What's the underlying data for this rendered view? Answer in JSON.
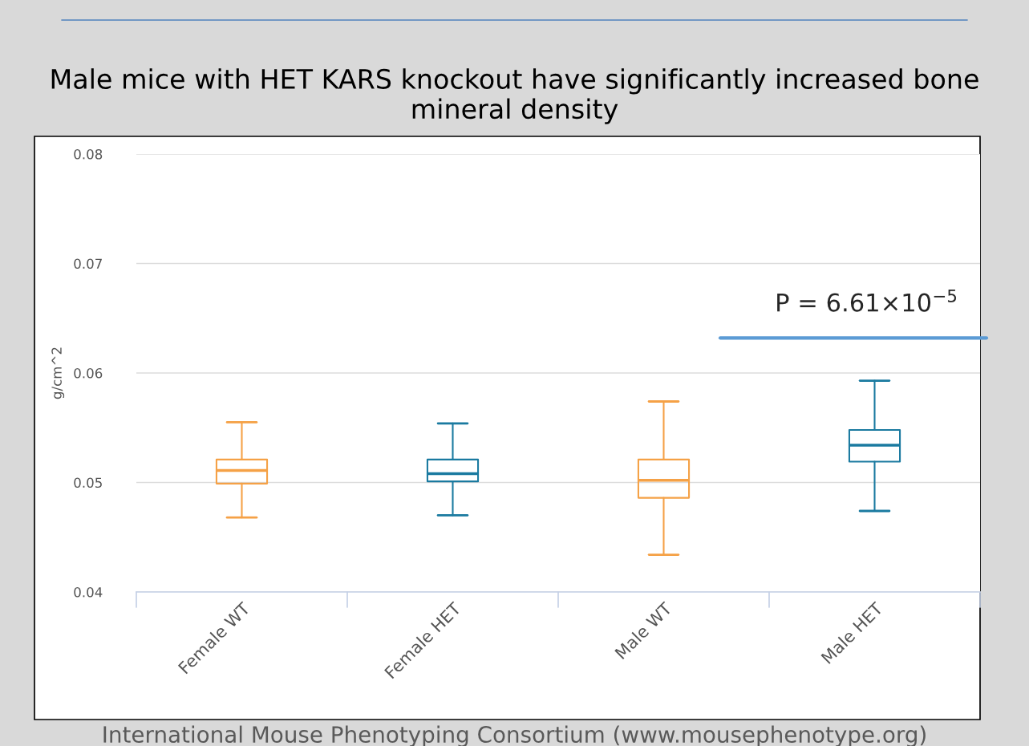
{
  "chart_data": {
    "type": "box",
    "title": "Male mice with HET KARS knockout have significantly increased bone mineral density",
    "ylabel": "g/cm^2",
    "categories": [
      "Female WT",
      "Female HET",
      "Male WT",
      "Male HET"
    ],
    "colors": [
      "#f5a146",
      "#1a7aa0",
      "#f5a146",
      "#1a7aa0"
    ],
    "boxes": [
      {
        "low": 0.0468,
        "q1": 0.0499,
        "median": 0.0511,
        "q3": 0.0521,
        "high": 0.0555
      },
      {
        "low": 0.047,
        "q1": 0.0501,
        "median": 0.0508,
        "q3": 0.0521,
        "high": 0.0554
      },
      {
        "low": 0.0434,
        "q1": 0.0486,
        "median": 0.0502,
        "q3": 0.0521,
        "high": 0.0574
      },
      {
        "low": 0.0474,
        "q1": 0.0519,
        "median": 0.0534,
        "q3": 0.0548,
        "high": 0.0593
      }
    ],
    "ref_lines": [
      {
        "axis": "y",
        "value": 0.0632,
        "color": "#5b9bd5"
      }
    ],
    "ylim": [
      0.04,
      0.08
    ],
    "yticks": [
      0.04,
      0.05,
      0.06,
      0.07,
      0.08
    ],
    "grid": "y",
    "legend": false,
    "annotations": [
      "P = 6.61×10$^{−5}$",
      "International Mouse Phenotyping Consortium (www.mousephenotype.org)"
    ]
  }
}
